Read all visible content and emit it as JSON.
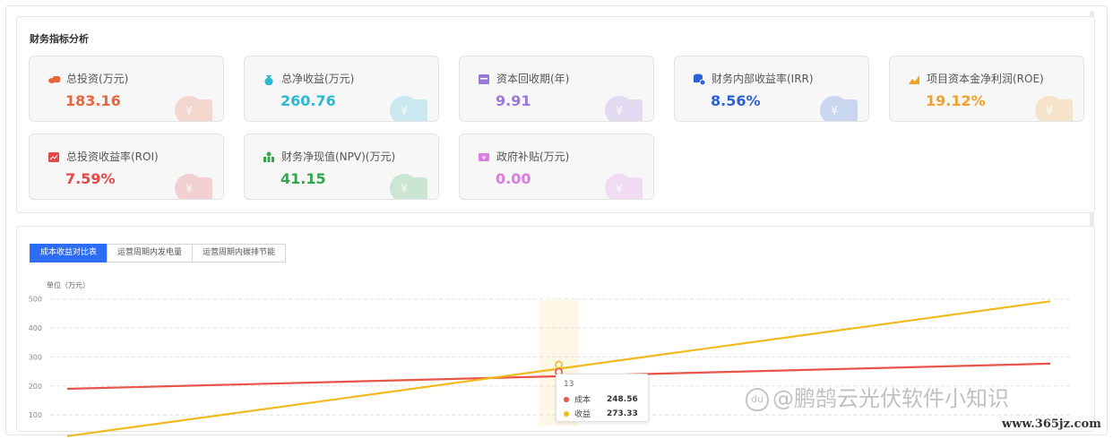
{
  "panel_title": "财务指标分析",
  "cards": [
    {
      "label": "总投资(万元)",
      "value": "183.16",
      "color": "#e8643c",
      "icon": "coins-icon"
    },
    {
      "label": "总净收益(万元)",
      "value": "260.76",
      "color": "#2bb8d0",
      "icon": "money-bag-icon"
    },
    {
      "label": "资本回收期(年)",
      "value": "9.91",
      "color": "#9a78d8",
      "icon": "calendar-icon"
    },
    {
      "label": "财务内部收益率(IRR)",
      "value": "8.56%",
      "color": "#2d5fd6",
      "icon": "database-percent-icon"
    },
    {
      "label": "项目资本金净利润(ROE)",
      "value": "19.12%",
      "color": "#f0a228",
      "icon": "growth-chart-icon"
    },
    {
      "label": "总投资收益率(ROI)",
      "value": "7.59%",
      "color": "#e24848",
      "icon": "roi-chart-icon"
    },
    {
      "label": "财务净现值(NPV)(万元)",
      "value": "41.15",
      "color": "#2ea84a",
      "icon": "money-stack-icon"
    },
    {
      "label": "政府补贴(万元)",
      "value": "0.00",
      "color": "#d97be0",
      "icon": "subsidy-ticket-icon"
    }
  ],
  "tabs": [
    {
      "label": "成本收益对比表",
      "active": true
    },
    {
      "label": "运营周期内发电量",
      "active": false
    },
    {
      "label": "运营周期内碳排节能",
      "active": false
    }
  ],
  "chart_data": {
    "type": "line",
    "ylabel": "单位（万元）",
    "y_ticks": [
      "500",
      "400",
      "300",
      "200",
      "100"
    ],
    "ylim": [
      0,
      500
    ],
    "x": [
      1,
      25
    ],
    "series": [
      {
        "name": "成本",
        "color": "#e8534a",
        "values": [
          190,
          277
        ]
      },
      {
        "name": "收益",
        "color": "#f2b81c",
        "values": [
          27,
          492
        ]
      }
    ],
    "highlight_x": 13,
    "grid": true
  },
  "tooltip": {
    "title": "13",
    "rows": [
      {
        "name": "成本",
        "value": "248.56",
        "color": "#e8534a"
      },
      {
        "name": "收益",
        "value": "273.33",
        "color": "#f2b81c"
      }
    ]
  },
  "watermark": "@鹏鹄云光伏软件小知识",
  "watermark_badge": "du",
  "site": "www.365jz.com"
}
